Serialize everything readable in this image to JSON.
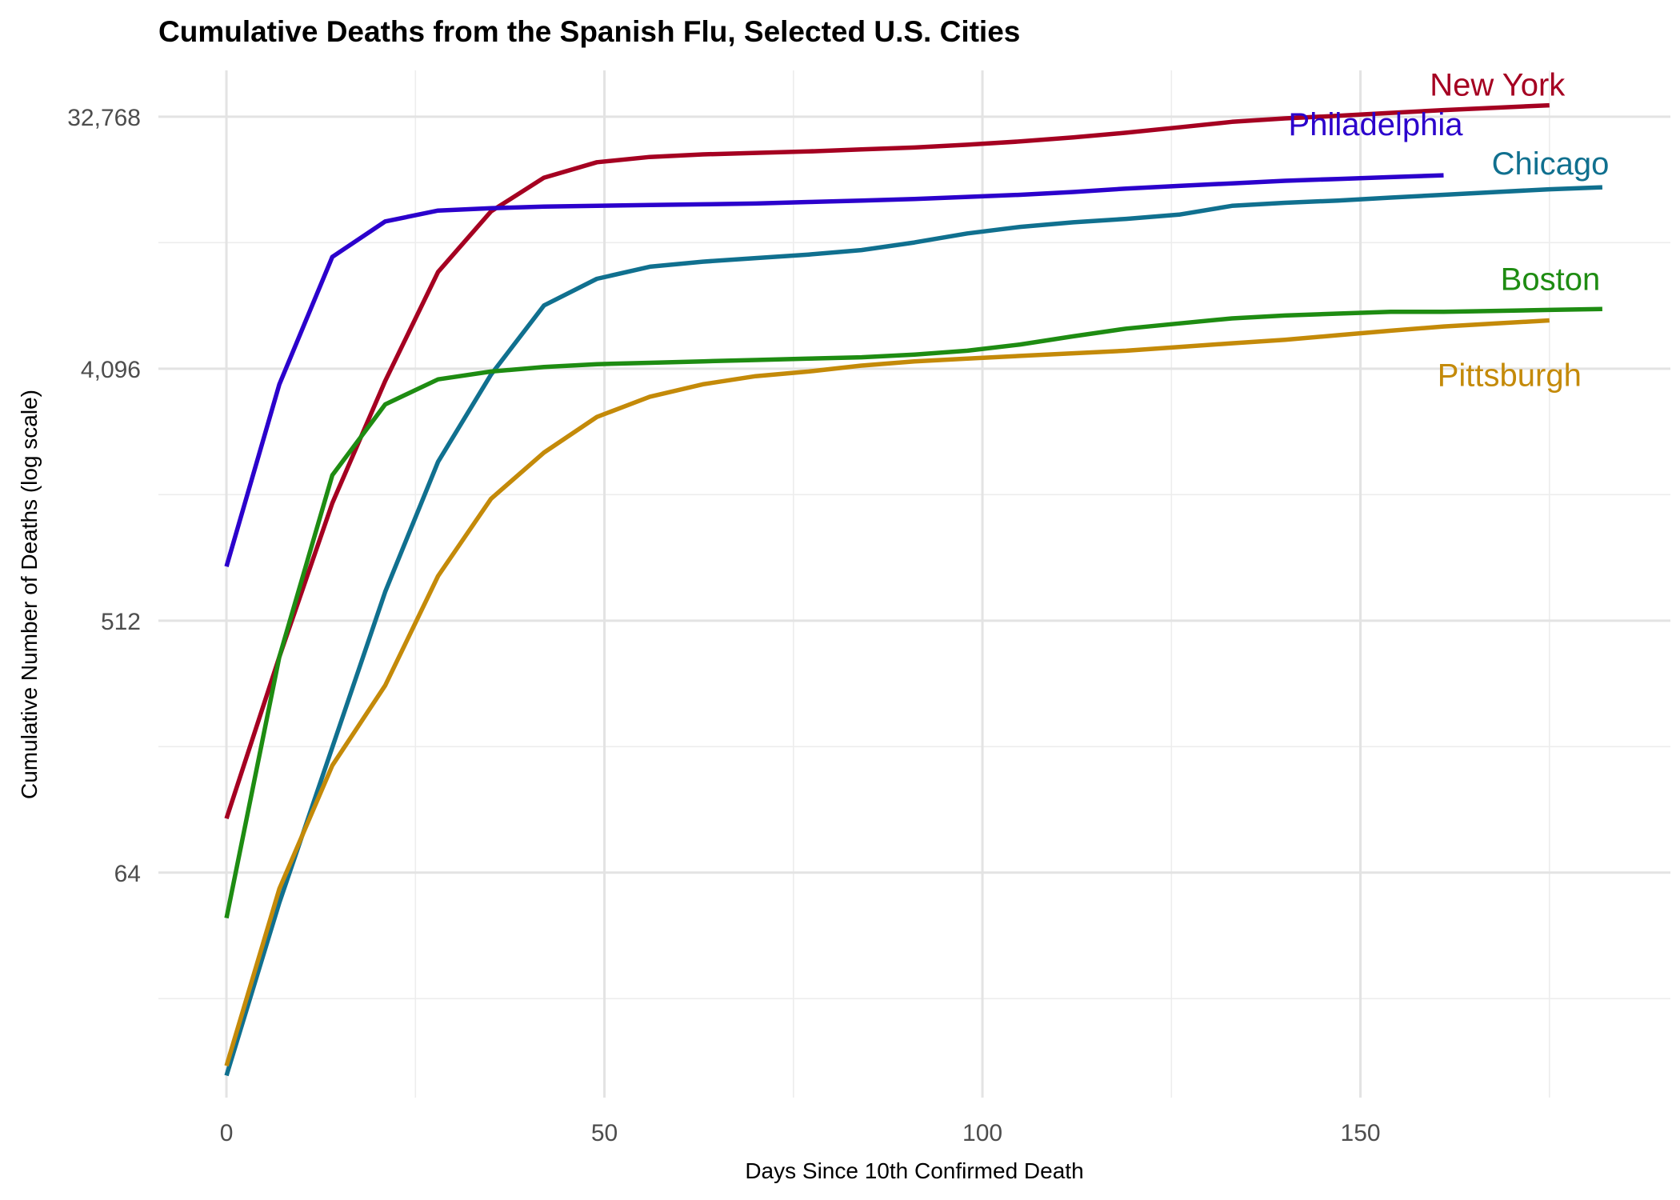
{
  "chart_data": {
    "type": "line",
    "title": "Cumulative Deaths from the Spanish Flu, Selected U.S. Cities",
    "xlabel": "Days Since 10th Confirmed Death",
    "ylabel": "Cumulative Number of Deaths (log scale)",
    "y_scale": "log2",
    "xlim": [
      -9,
      191
    ],
    "ylim": [
      10,
      48000
    ],
    "x_ticks": [
      0,
      50,
      100,
      150
    ],
    "x_tick_labels": [
      "0",
      "50",
      "100",
      "150"
    ],
    "y_ticks": [
      64,
      512,
      4096,
      32768
    ],
    "y_tick_labels": [
      "64",
      "512",
      "4,096",
      "32,768"
    ],
    "grid": true,
    "legend": "direct labels at line ends",
    "series": [
      {
        "name": "New York",
        "color": "#A50021",
        "x": [
          0,
          7,
          14,
          21,
          28,
          35,
          42,
          49,
          56,
          63,
          70,
          77,
          84,
          91,
          98,
          105,
          112,
          119,
          126,
          133,
          140,
          147,
          154,
          161,
          168,
          175
        ],
        "values": [
          100,
          380,
          1350,
          3700,
          9100,
          15000,
          19800,
          22500,
          23500,
          24000,
          24300,
          24600,
          25000,
          25400,
          26000,
          26700,
          27600,
          28700,
          30000,
          31400,
          32300,
          33000,
          33800,
          34600,
          35300,
          36000
        ]
      },
      {
        "name": "Philadelphia",
        "color": "#2B00CC",
        "x": [
          0,
          7,
          14,
          21,
          28,
          35,
          42,
          49,
          56,
          63,
          70,
          77,
          84,
          91,
          98,
          105,
          112,
          119,
          126,
          133,
          140,
          147,
          154,
          161
        ],
        "values": [
          800,
          3600,
          10300,
          13800,
          15100,
          15400,
          15600,
          15700,
          15800,
          15900,
          16000,
          16200,
          16400,
          16600,
          16900,
          17200,
          17600,
          18100,
          18500,
          18900,
          19300,
          19600,
          19900,
          20200
        ]
      },
      {
        "name": "Chicago",
        "color": "#10708F",
        "x": [
          0,
          7,
          14,
          21,
          28,
          35,
          42,
          49,
          56,
          63,
          70,
          77,
          84,
          91,
          98,
          105,
          112,
          119,
          126,
          133,
          140,
          147,
          154,
          161,
          168,
          175,
          182
        ],
        "values": [
          12,
          50,
          180,
          650,
          1900,
          3900,
          6900,
          8600,
          9500,
          9900,
          10200,
          10500,
          10900,
          11600,
          12500,
          13200,
          13700,
          14100,
          14600,
          15700,
          16100,
          16400,
          16800,
          17200,
          17600,
          18000,
          18300
        ]
      },
      {
        "name": "Boston",
        "color": "#1E8C12",
        "x": [
          0,
          7,
          14,
          21,
          28,
          35,
          42,
          49,
          56,
          63,
          70,
          77,
          84,
          91,
          98,
          105,
          112,
          119,
          126,
          133,
          140,
          147,
          154,
          161,
          168,
          175,
          182
        ],
        "values": [
          44,
          380,
          1700,
          3050,
          3750,
          4000,
          4150,
          4250,
          4300,
          4350,
          4400,
          4450,
          4500,
          4600,
          4750,
          5000,
          5350,
          5700,
          5950,
          6200,
          6350,
          6450,
          6550,
          6550,
          6600,
          6650,
          6700
        ]
      },
      {
        "name": "Pittsburgh",
        "color": "#C48A09",
        "x": [
          0,
          7,
          14,
          21,
          28,
          35,
          42,
          49,
          56,
          63,
          70,
          77,
          84,
          91,
          98,
          105,
          112,
          119,
          126,
          133,
          140,
          147,
          154,
          161,
          168,
          175
        ],
        "values": [
          13,
          56,
          155,
          300,
          740,
          1400,
          2050,
          2750,
          3250,
          3600,
          3850,
          4000,
          4200,
          4350,
          4450,
          4550,
          4650,
          4750,
          4900,
          5050,
          5200,
          5400,
          5600,
          5800,
          5950,
          6100
        ]
      }
    ]
  }
}
